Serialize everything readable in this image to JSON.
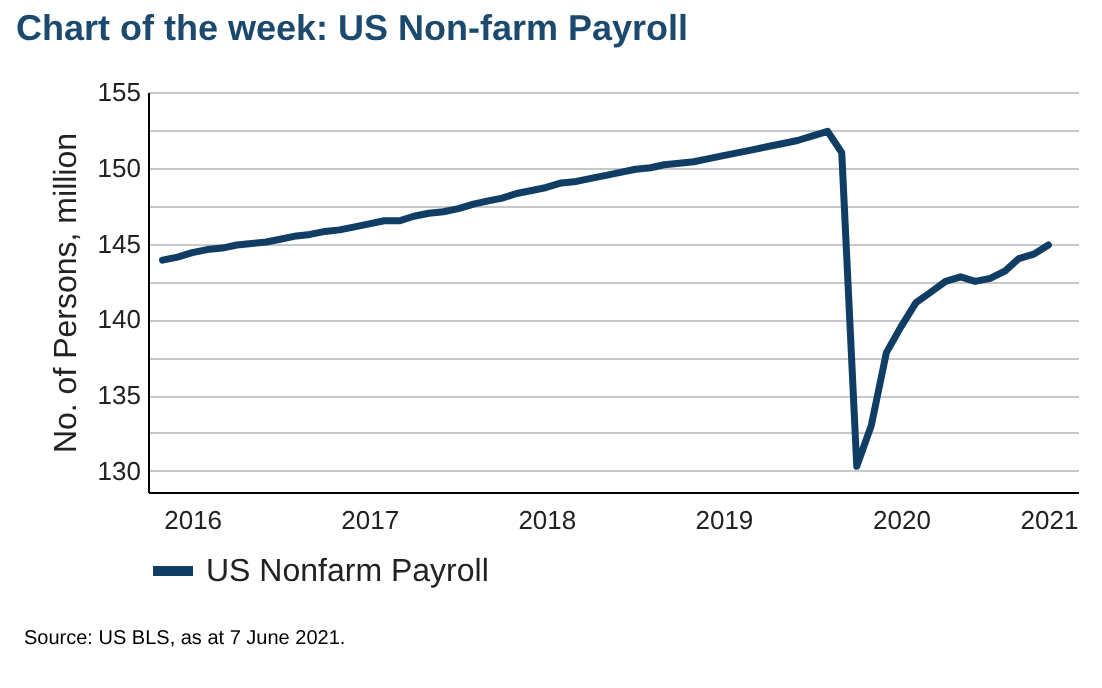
{
  "chart_data": {
    "type": "line",
    "title": "Chart of the week: US Non-farm Payroll",
    "ylabel": "No. of Persons, million",
    "annotations": [
      "Source: US BLS, as at 7 June 2021."
    ],
    "x": [
      "2016-05",
      "2016-06",
      "2016-07",
      "2016-08",
      "2016-09",
      "2016-10",
      "2016-11",
      "2016-12",
      "2017-01",
      "2017-02",
      "2017-03",
      "2017-04",
      "2017-05",
      "2017-06",
      "2017-07",
      "2017-08",
      "2017-09",
      "2017-10",
      "2017-11",
      "2017-12",
      "2018-01",
      "2018-02",
      "2018-03",
      "2018-04",
      "2018-05",
      "2018-06",
      "2018-07",
      "2018-08",
      "2018-09",
      "2018-10",
      "2018-11",
      "2018-12",
      "2019-01",
      "2019-02",
      "2019-03",
      "2019-04",
      "2019-05",
      "2019-06",
      "2019-07",
      "2019-08",
      "2019-09",
      "2019-10",
      "2019-11",
      "2019-12",
      "2020-01",
      "2020-02",
      "2020-03",
      "2020-04",
      "2020-05",
      "2020-06",
      "2020-07",
      "2020-08",
      "2020-09",
      "2020-10",
      "2020-11",
      "2020-12",
      "2021-01",
      "2021-02",
      "2021-03",
      "2021-04",
      "2021-05"
    ],
    "series": [
      {
        "name": "US Nonfarm Payroll",
        "color": "#0f3d63",
        "values": [
          143.9,
          144.1,
          144.4,
          144.6,
          144.7,
          144.9,
          145.0,
          145.1,
          145.3,
          145.5,
          145.6,
          145.8,
          145.9,
          146.1,
          146.3,
          146.5,
          146.5,
          146.8,
          147.0,
          147.1,
          147.3,
          147.6,
          147.8,
          148.0,
          148.3,
          148.5,
          148.7,
          149.0,
          149.1,
          149.3,
          149.5,
          149.7,
          149.9,
          150.0,
          150.2,
          150.3,
          150.4,
          150.6,
          150.8,
          151.0,
          151.2,
          151.4,
          151.6,
          151.8,
          152.1,
          152.4,
          151.0,
          130.3,
          133.0,
          137.8,
          139.5,
          141.1,
          141.8,
          142.5,
          142.8,
          142.5,
          142.7,
          143.2,
          144.0,
          144.3,
          144.9
        ]
      }
    ],
    "xlim": [
      "2016-04-01",
      "2021-07-01"
    ],
    "xticks": [
      {
        "value": "2016-07-01",
        "label": "2016"
      },
      {
        "value": "2017-07-01",
        "label": "2017"
      },
      {
        "value": "2018-07-01",
        "label": "2018"
      },
      {
        "value": "2019-07-01",
        "label": "2019"
      },
      {
        "value": "2020-07-01",
        "label": "2020"
      },
      {
        "value": "2021-05-01",
        "label": "2021"
      }
    ],
    "ylim": [
      128.6,
      155
    ],
    "yticks": [
      130,
      {
        "value": 132.5,
        "label": null
      },
      135,
      {
        "value": 137.5,
        "label": null
      },
      140,
      {
        "value": 142.5,
        "label": null
      },
      145,
      {
        "value": 147.5,
        "label": null
      },
      150,
      {
        "value": 152.5,
        "label": null
      },
      155
    ],
    "grid": "y",
    "legend": "bottom",
    "line_style": "solid",
    "marker": "none"
  }
}
